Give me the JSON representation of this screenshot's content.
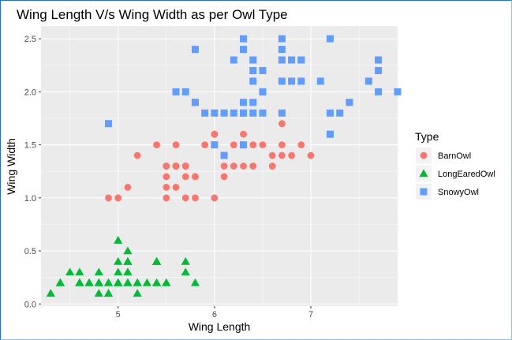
{
  "chart_data": {
    "type": "scatter",
    "title": "Wing Length V/s Wing Width as per Owl Type",
    "xlabel": "Wing Length",
    "ylabel": "Wing Width",
    "xlim": [
      4.2,
      7.9
    ],
    "ylim": [
      -0.02,
      2.62
    ],
    "x_ticks": [
      "5",
      "6",
      "7"
    ],
    "y_ticks": [
      "0.0",
      "0.5",
      "1.0",
      "1.5",
      "2.0",
      "2.5"
    ],
    "grid": true,
    "legend_title": "Type",
    "legend_position": "right",
    "series": [
      {
        "name": "BarnOwl",
        "color": "#F8766D",
        "marker": "circle",
        "x": [
          7.0,
          6.4,
          6.9,
          5.5,
          6.5,
          5.7,
          6.3,
          4.9,
          6.6,
          5.2,
          5.0,
          5.9,
          6.0,
          6.1,
          5.6,
          6.7,
          5.6,
          5.8,
          6.2,
          5.6,
          5.9,
          6.1,
          6.3,
          6.1,
          6.4,
          6.6,
          6.8,
          6.7,
          6.0,
          5.7,
          5.5,
          5.5,
          5.8,
          6.0,
          5.4,
          6.0,
          6.7,
          6.3,
          5.6,
          5.5,
          5.5,
          6.1,
          5.8,
          5.0,
          5.6,
          5.7,
          5.7,
          6.2,
          5.1,
          5.7
        ],
        "y": [
          1.4,
          1.5,
          1.5,
          1.3,
          1.5,
          1.3,
          1.6,
          1.0,
          1.3,
          1.4,
          1.0,
          1.5,
          1.0,
          1.4,
          1.3,
          1.4,
          1.5,
          1.0,
          1.5,
          1.1,
          1.8,
          1.3,
          1.5,
          1.2,
          1.3,
          1.4,
          1.4,
          1.7,
          1.5,
          1.0,
          1.1,
          1.0,
          1.2,
          1.6,
          1.5,
          1.6,
          1.5,
          1.3,
          1.3,
          1.3,
          1.2,
          1.4,
          1.2,
          1.0,
          1.3,
          1.2,
          1.3,
          1.3,
          1.1,
          1.3
        ]
      },
      {
        "name": "LongEaredOwl",
        "color": "#00BA38",
        "marker": "triangle",
        "x": [
          5.1,
          4.9,
          4.7,
          4.6,
          5.0,
          5.4,
          4.6,
          5.0,
          4.4,
          4.9,
          5.4,
          4.8,
          4.8,
          4.3,
          5.8,
          5.7,
          5.4,
          5.1,
          5.7,
          5.1,
          5.4,
          5.1,
          4.6,
          5.1,
          4.8,
          5.0,
          5.0,
          5.2,
          5.2,
          4.7,
          4.8,
          5.4,
          5.2,
          5.5,
          4.9,
          5.0,
          5.5,
          4.9,
          4.4,
          5.1,
          5.0,
          4.5,
          4.4,
          5.0,
          5.1,
          4.8,
          5.1,
          4.6,
          5.3,
          5.0
        ],
        "y": [
          0.2,
          0.2,
          0.2,
          0.2,
          0.2,
          0.4,
          0.3,
          0.2,
          0.2,
          0.1,
          0.2,
          0.2,
          0.1,
          0.1,
          0.2,
          0.4,
          0.4,
          0.3,
          0.3,
          0.3,
          0.2,
          0.4,
          0.2,
          0.5,
          0.2,
          0.2,
          0.4,
          0.2,
          0.2,
          0.2,
          0.2,
          0.4,
          0.1,
          0.2,
          0.2,
          0.2,
          0.2,
          0.1,
          0.2,
          0.2,
          0.3,
          0.3,
          0.2,
          0.6,
          0.4,
          0.3,
          0.2,
          0.2,
          0.2,
          0.2
        ]
      },
      {
        "name": "SnowyOwl",
        "color": "#619CFF",
        "marker": "square",
        "x": [
          6.3,
          5.8,
          7.1,
          6.3,
          6.5,
          7.6,
          4.9,
          7.3,
          6.7,
          7.2,
          6.5,
          6.4,
          6.8,
          5.7,
          5.8,
          6.4,
          6.5,
          7.7,
          7.7,
          6.0,
          6.9,
          5.6,
          7.7,
          6.3,
          6.7,
          7.2,
          6.2,
          6.1,
          6.4,
          7.2,
          7.4,
          7.9,
          6.4,
          6.3,
          6.1,
          7.7,
          6.3,
          6.4,
          6.0,
          6.9,
          6.7,
          6.9,
          5.8,
          6.8,
          6.7,
          6.7,
          6.3,
          6.5,
          6.2,
          5.9
        ],
        "y": [
          2.5,
          1.9,
          2.1,
          1.8,
          2.2,
          2.1,
          1.7,
          1.8,
          1.8,
          2.5,
          2.0,
          1.9,
          2.1,
          2.0,
          2.4,
          2.3,
          1.8,
          2.2,
          2.3,
          1.5,
          2.3,
          2.0,
          2.0,
          1.8,
          2.1,
          1.8,
          1.8,
          1.8,
          2.1,
          1.6,
          1.9,
          2.0,
          2.2,
          1.5,
          1.4,
          2.3,
          2.4,
          1.8,
          1.8,
          2.1,
          2.4,
          2.3,
          1.9,
          2.3,
          2.5,
          2.3,
          1.9,
          2.0,
          2.3,
          1.8
        ]
      }
    ]
  }
}
